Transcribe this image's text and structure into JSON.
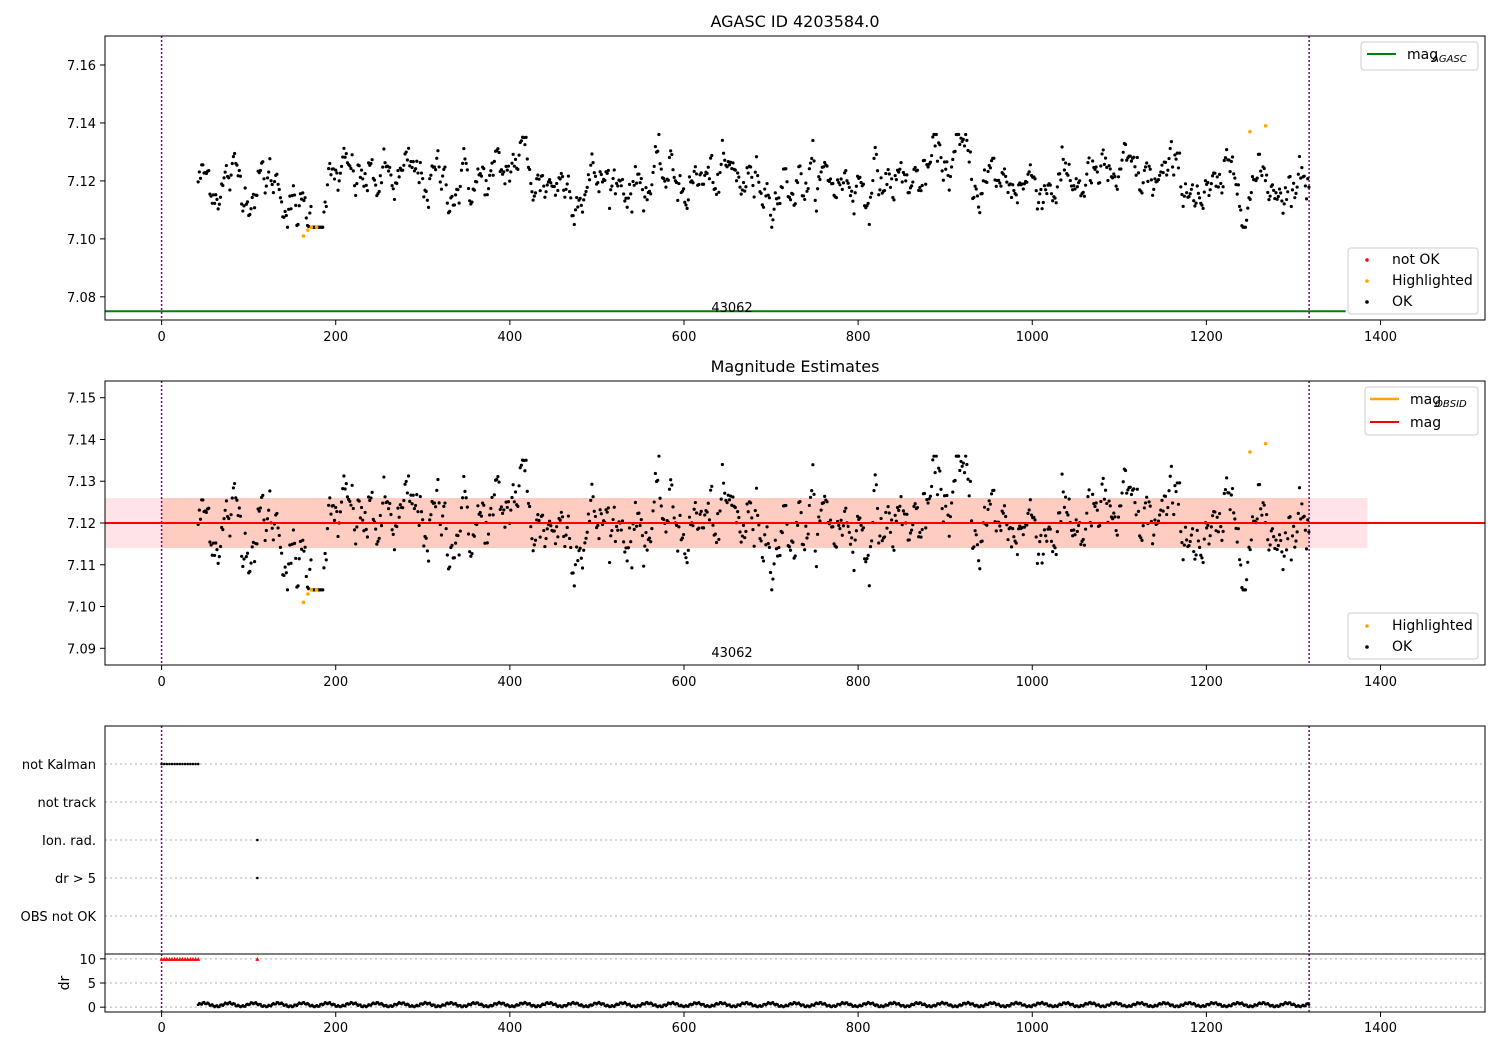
{
  "chart_data": [
    {
      "type": "scatter",
      "title": "AGASC ID 4203584.0",
      "obsid_label": "43062",
      "xlim": [
        -65,
        1520
      ],
      "ylim": [
        7.072,
        7.17
      ],
      "x_ticks": [
        0,
        200,
        400,
        600,
        800,
        1000,
        1200,
        1400
      ],
      "y_ticks": [
        7.08,
        7.1,
        7.12,
        7.14,
        7.16
      ],
      "y_tick_labels": [
        "7.08",
        "7.10",
        "7.12",
        "7.14",
        "7.16"
      ],
      "vlines": [
        0,
        1318
      ],
      "vline_color": "#800080",
      "mag_agasc": 7.075,
      "mag_agasc_color": "#008000",
      "legend_top": [
        {
          "label": "mag",
          "sub": "AGASC",
          "color": "#008000",
          "kind": "line"
        }
      ],
      "legend_bottom": [
        {
          "label": "not OK",
          "color": "#ff0000",
          "kind": "dot"
        },
        {
          "label": "Highlighted",
          "color": "#ffa500",
          "kind": "dot"
        },
        {
          "label": "OK",
          "color": "#000000",
          "kind": "dot"
        }
      ],
      "highlighted_points": [
        {
          "x": 163,
          "y": 7.101
        },
        {
          "x": 168,
          "y": 7.103
        },
        {
          "x": 172,
          "y": 7.104
        },
        {
          "x": 178,
          "y": 7.104
        },
        {
          "x": 1250,
          "y": 7.137
        },
        {
          "x": 1268,
          "y": 7.139
        }
      ]
    },
    {
      "type": "scatter",
      "title": "Magnitude Estimates",
      "obsid_label": "43062",
      "xlim": [
        -65,
        1520
      ],
      "ylim": [
        7.086,
        7.154
      ],
      "x_ticks": [
        0,
        200,
        400,
        600,
        800,
        1000,
        1200,
        1400
      ],
      "y_ticks": [
        7.09,
        7.1,
        7.11,
        7.12,
        7.13,
        7.14,
        7.15
      ],
      "y_tick_labels": [
        "7.09",
        "7.10",
        "7.11",
        "7.12",
        "7.13",
        "7.14",
        "7.15"
      ],
      "vlines": [
        0,
        1318
      ],
      "mag": 7.12,
      "mag_color": "#ff0000",
      "mag_band": [
        7.114,
        7.126
      ],
      "mag_band_x": [
        -65,
        1385
      ],
      "obsid_band": [
        7.114,
        7.126
      ],
      "obsid_band_x": [
        0,
        1318
      ],
      "legend_top": [
        {
          "label": "mag",
          "sub": "OBSID",
          "color": "#ffa500",
          "kind": "line"
        },
        {
          "label": "mag",
          "sub": "",
          "color": "#ff0000",
          "kind": "line"
        }
      ],
      "legend_bottom": [
        {
          "label": "Highlighted",
          "color": "#ffa500",
          "kind": "dot"
        },
        {
          "label": "OK",
          "color": "#000000",
          "kind": "dot"
        }
      ],
      "highlighted_points": [
        {
          "x": 163,
          "y": 7.101
        },
        {
          "x": 168,
          "y": 7.103
        },
        {
          "x": 172,
          "y": 7.104
        },
        {
          "x": 178,
          "y": 7.104
        },
        {
          "x": 1250,
          "y": 7.137
        },
        {
          "x": 1268,
          "y": 7.139
        }
      ]
    },
    {
      "type": "scatter",
      "title": "",
      "xlim": [
        -65,
        1520
      ],
      "x_ticks": [
        0,
        200,
        400,
        600,
        800,
        1000,
        1200,
        1400
      ],
      "flag_categories": [
        "not Kalman",
        "not track",
        "Ion. rad.",
        "dr > 5",
        "OBS not OK"
      ],
      "flag_segments": [
        {
          "category": "not Kalman",
          "x_from": 0,
          "x_to": 44
        },
        {
          "category": "Ion. rad.",
          "x_from": 110,
          "x_to": 110
        },
        {
          "category": "dr > 5",
          "x_from": 110,
          "x_to": 110
        }
      ],
      "vlines": [
        0,
        1318
      ],
      "dr_label": "dr",
      "dr_ylim": [
        -1,
        11
      ],
      "dr_y_ticks": [
        0,
        5,
        10
      ],
      "dr_y_tick_labels": [
        "0",
        "5",
        "10"
      ],
      "dr_clipped_points": [
        {
          "x_from": 0,
          "x_to": 44,
          "y": 10
        },
        {
          "x_from": 110,
          "x_to": 110,
          "y": 10
        }
      ],
      "dr_clipped_color": "#ff0000",
      "dr_typical": 0.5
    }
  ]
}
